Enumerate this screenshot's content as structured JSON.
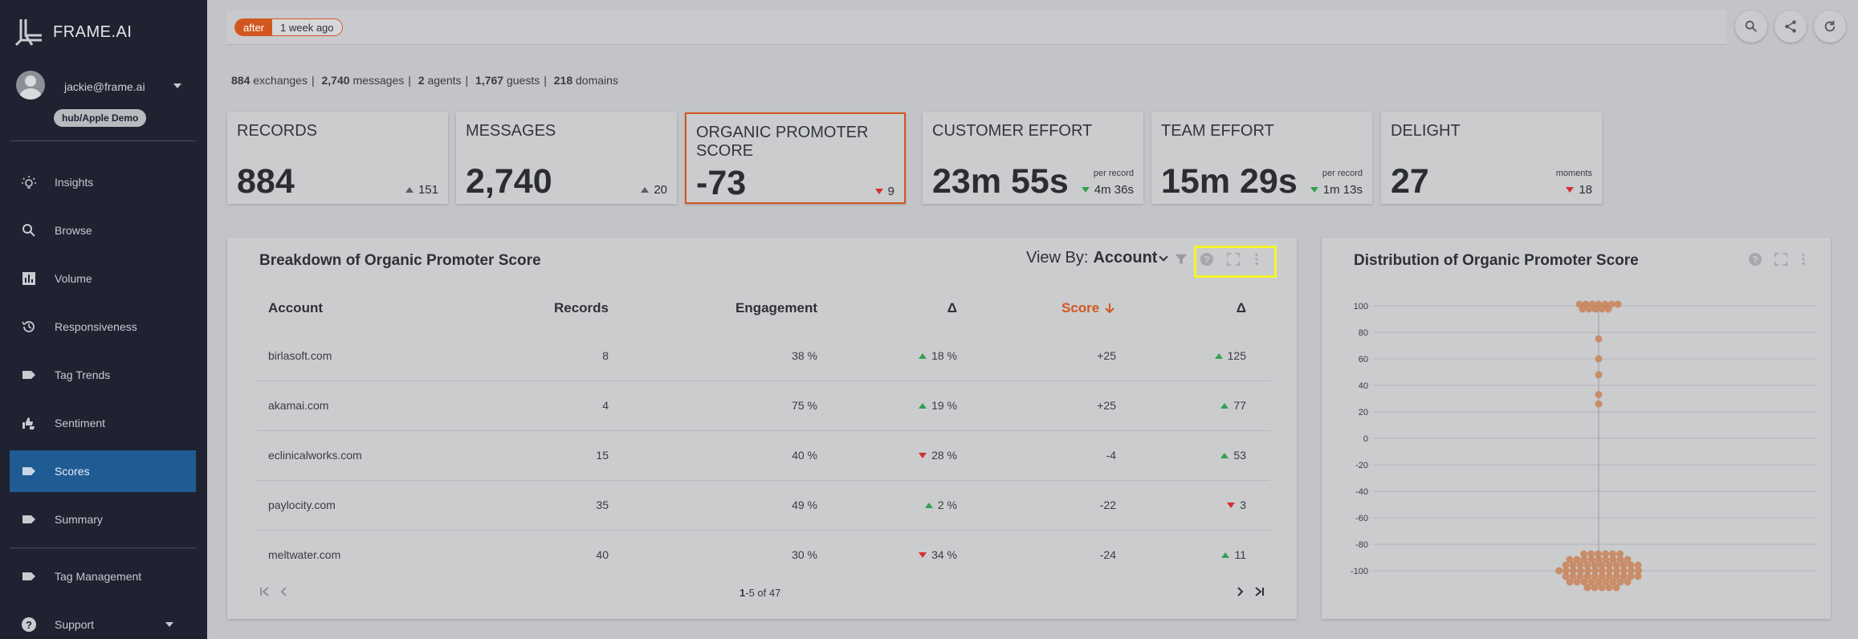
{
  "brand": {
    "name": "FRAME.AI"
  },
  "user": {
    "email": "jackie@frame.ai",
    "hub": "hub/Apple Demo"
  },
  "nav": {
    "items": [
      {
        "label": "Insights",
        "icon": "lightbulb-icon"
      },
      {
        "label": "Browse",
        "icon": "search-icon"
      },
      {
        "label": "Volume",
        "icon": "bar-chart-icon"
      },
      {
        "label": "Responsiveness",
        "icon": "history-icon"
      },
      {
        "label": "Tag Trends",
        "icon": "tag-icon"
      },
      {
        "label": "Sentiment",
        "icon": "thumbs-icon"
      },
      {
        "label": "Scores",
        "icon": "tag-icon",
        "active": true
      },
      {
        "label": "Summary",
        "icon": "tag-icon"
      },
      {
        "label": "Tag Management",
        "icon": "tag-icon"
      },
      {
        "label": "Support",
        "icon": "help-icon"
      }
    ]
  },
  "filter": {
    "key": "after",
    "value": "1 week ago"
  },
  "summary": {
    "exchanges_count": "884",
    "exchanges_label": "exchanges",
    "messages_count": "2,740",
    "messages_label": "messages",
    "agents_count": "2",
    "agents_label": "agents",
    "guests_count": "1,767",
    "guests_label": "guests",
    "domains_count": "218",
    "domains_label": "domains"
  },
  "kpis": [
    {
      "title": "RECORDS",
      "value": "884",
      "delta": "151",
      "dir": "up-gray",
      "note": ""
    },
    {
      "title": "MESSAGES",
      "value": "2,740",
      "delta": "20",
      "dir": "up-gray",
      "note": ""
    },
    {
      "title": "ORGANIC PROMOTER SCORE",
      "value": "-73",
      "delta": "9",
      "dir": "down-red",
      "note": ""
    },
    {
      "title": "CUSTOMER EFFORT",
      "value": "23m 55s",
      "delta": "4m 36s",
      "dir": "down-green",
      "note": "per record"
    },
    {
      "title": "TEAM EFFORT",
      "value": "15m 29s",
      "delta": "1m 13s",
      "dir": "down-green",
      "note": "per record"
    },
    {
      "title": "DELIGHT",
      "value": "27",
      "delta": "18",
      "dir": "down-red",
      "note": "moments"
    }
  ],
  "breakdown": {
    "title": "Breakdown of Organic Promoter Score",
    "view_by_label": "View By:",
    "view_by_value": "Account",
    "columns": [
      "Account",
      "Records",
      "Engagement",
      "Δ",
      "Score",
      "Δ"
    ],
    "rows": [
      {
        "account": "birlasoft.com",
        "records": "8",
        "engagement": "38 %",
        "eng_delta": "18 %",
        "eng_dir": "up",
        "score": "+25",
        "score_delta": "125",
        "score_dir": "up"
      },
      {
        "account": "akamai.com",
        "records": "4",
        "engagement": "75 %",
        "eng_delta": "19 %",
        "eng_dir": "up",
        "score": "+25",
        "score_delta": "77",
        "score_dir": "up"
      },
      {
        "account": "eclinicalworks.com",
        "records": "15",
        "engagement": "40 %",
        "eng_delta": "28 %",
        "eng_dir": "down",
        "score": "-4",
        "score_delta": "53",
        "score_dir": "up"
      },
      {
        "account": "paylocity.com",
        "records": "35",
        "engagement": "49 %",
        "eng_delta": "2 %",
        "eng_dir": "up",
        "score": "-22",
        "score_delta": "3",
        "score_dir": "down"
      },
      {
        "account": "meltwater.com",
        "records": "40",
        "engagement": "30 %",
        "eng_delta": "34 %",
        "eng_dir": "down",
        "score": "-24",
        "score_delta": "11",
        "score_dir": "up"
      }
    ],
    "pager": {
      "range_start": "1",
      "range_rest": "-5 of 47"
    }
  },
  "distribution": {
    "title": "Distribution of Organic Promoter Score"
  },
  "chart_data": {
    "type": "scatter",
    "title": "Distribution of Organic Promoter Score",
    "ylim": [
      -100,
      100
    ],
    "yticks": [
      "100",
      "80",
      "60",
      "40",
      "20",
      "0",
      "-20",
      "-40",
      "-60",
      "-80",
      "-100"
    ],
    "grid": true,
    "point_color": "#c9865e",
    "x": [
      0
    ],
    "clusters": [
      {
        "y": 100,
        "count": 12
      },
      {
        "y": 75,
        "count": 1
      },
      {
        "y": 60,
        "count": 1
      },
      {
        "y": 48,
        "count": 1
      },
      {
        "y": 33,
        "count": 1
      },
      {
        "y": 26,
        "count": 1
      },
      {
        "y": -100,
        "count": 85
      }
    ]
  }
}
